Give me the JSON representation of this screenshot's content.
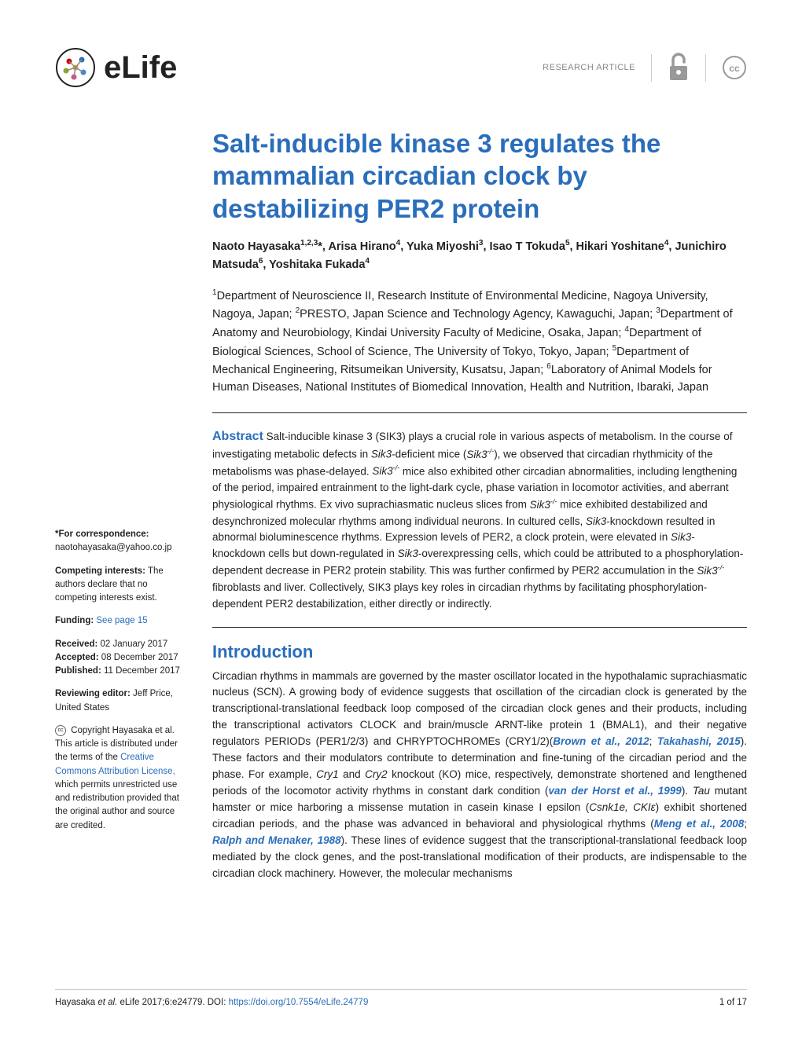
{
  "header": {
    "journal_name": "eLife",
    "article_type": "RESEARCH ARTICLE"
  },
  "colors": {
    "primary": "#2a6ebb",
    "text": "#222222",
    "muted": "#888888",
    "divider": "#cccccc",
    "background": "#ffffff"
  },
  "typography": {
    "title_fontsize": 33,
    "body_fontsize": 13.5,
    "section_fontsize": 22,
    "sidebar_fontsize": 11.5,
    "footer_fontsize": 11.5
  },
  "article": {
    "title": "Salt-inducible kinase 3 regulates the mammalian circadian clock by destabilizing PER2 protein",
    "authors_html": "Naoto Hayasaka<sup>1,2,3</sup>*, Arisa Hirano<sup>4</sup>, Yuka Miyoshi<sup>3</sup>, Isao T Tokuda<sup>5</sup>, Hikari Yoshitane<sup>4</sup>, Junichiro Matsuda<sup>6</sup>, Yoshitaka Fukada<sup>4</sup>",
    "affiliations_html": "<sup>1</sup>Department of Neuroscience II, Research Institute of Environmental Medicine, Nagoya University, Nagoya, Japan; <sup>2</sup>PRESTO, Japan Science and Technology Agency, Kawaguchi, Japan; <sup>3</sup>Department of Anatomy and Neurobiology, Kindai University Faculty of Medicine, Osaka, Japan; <sup>4</sup>Department of Biological Sciences, School of Science, The University of Tokyo, Tokyo, Japan; <sup>5</sup>Department of Mechanical Engineering, Ritsumeikan University, Kusatsu, Japan; <sup>6</sup>Laboratory of Animal Models for Human Diseases, National Institutes of Biomedical Innovation, Health and Nutrition, Ibaraki, Japan",
    "abstract_label": "Abstract",
    "abstract_html": "Salt-inducible kinase 3 (SIK3) plays a crucial role in various aspects of metabolism. In the course of investigating metabolic defects in <i>Sik3</i>-deficient mice (<i>Sik3<sup>-/-</sup></i>), we observed that circadian rhythmicity of the metabolisms was phase-delayed. <i>Sik3<sup>-/-</sup></i> mice also exhibited other circadian abnormalities, including lengthening of the period, impaired entrainment to the light-dark cycle, phase variation in locomotor activities, and aberrant physiological rhythms. Ex vivo suprachiasmatic nucleus slices from <i>Sik3<sup>-/-</sup></i> mice exhibited destabilized and desynchronized molecular rhythms among individual neurons. In cultured cells, <i>Sik3</i>-knockdown resulted in abnormal bioluminescence rhythms. Expression levels of PER2, a clock protein, were elevated in <i>Sik3</i>-knockdown cells but down-regulated in <i>Sik3</i>-overexpressing cells, which could be attributed to a phosphorylation-dependent decrease in PER2 protein stability. This was further confirmed by PER2 accumulation in the <i>Sik3<sup>-/-</sup></i> fibroblasts and liver. Collectively, SIK3 plays key roles in circadian rhythms by facilitating phosphorylation-dependent PER2 destabilization, either directly or indirectly.",
    "intro_title": "Introduction",
    "intro_html": "Circadian rhythms in mammals are governed by the master oscillator located in the hypothalamic suprachiasmatic nucleus (SCN). A growing body of evidence suggests that oscillation of the circadian clock is generated by the transcriptional-translational feedback loop composed of the circadian clock genes and their products, including the transcriptional activators CLOCK and brain/muscle ARNT-like protein 1 (BMAL1), and their negative regulators PERIODs (PER1/2/3) and CHRYPTOCHROMEs (CRY1/2)(<span class=\"ref-link\">Brown et al., 2012</span>; <span class=\"ref-link\">Takahashi, 2015</span>). These factors and their modulators contribute to determination and fine-tuning of the circadian period and the phase. For example, <i>Cry1</i> and <i>Cry2</i> knockout (KO) mice, respectively, demonstrate shortened and lengthened periods of the locomotor activity rhythms in constant dark condition (<span class=\"ref-link\">van der Horst et al., 1999</span>). <i>Tau</i> mutant hamster or mice harboring a missense mutation in casein kinase I epsilon (<i>Csnk1e, CKIε</i>) exhibit shortened circadian periods, and the phase was advanced in behavioral and physiological rhythms (<span class=\"ref-link\">Meng et al., 2008</span>; <span class=\"ref-link\">Ralph and Menaker, 1988</span>). These lines of evidence suggest that the transcriptional-translational feedback loop mediated by the clock genes, and the post-translational modification of their products, are indispensable to the circadian clock machinery. However, the molecular mechanisms"
  },
  "sidebar": {
    "correspondence_label": "*For correspondence:",
    "correspondence_email": "naotohayasaka@yahoo.co.jp",
    "competing_label": "Competing interests:",
    "competing_text": " The authors declare that no competing interests exist.",
    "funding_label": "Funding:",
    "funding_link": " See page 15",
    "received_label": "Received:",
    "received_date": " 02 January 2017",
    "accepted_label": "Accepted:",
    "accepted_date": " 08 December 2017",
    "published_label": "Published:",
    "published_date": " 11 December 2017",
    "reviewing_label": "Reviewing editor:",
    "reviewing_text": "  Jeff Price, United States",
    "copyright_text": " Copyright Hayasaka et al. This article is distributed under the terms of the ",
    "copyright_link": "Creative Commons Attribution License,",
    "copyright_tail": " which permits unrestricted use and redistribution provided that the original author and source are credited."
  },
  "footer": {
    "citation_prefix": "Hayasaka ",
    "citation_italic": "et al.",
    "citation_text": " eLife 2017;6:e24779. ",
    "doi_label": "DOI: ",
    "doi_url": "https://doi.org/10.7554/eLife.24779",
    "page_num": "1 of 17"
  }
}
